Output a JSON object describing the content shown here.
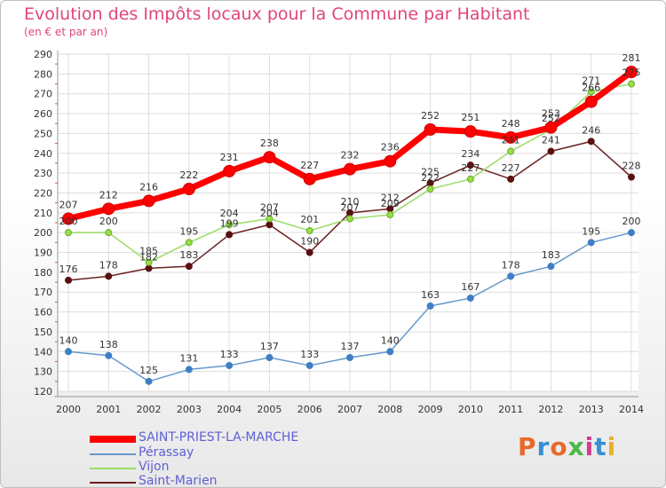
{
  "chart_data": {
    "type": "line",
    "title": "Evolution des Impôts locaux pour la Commune par Habitant",
    "subtitle": "(en € et par an)",
    "xlabel": "",
    "ylabel": "",
    "categories": [
      "2000",
      "2001",
      "2002",
      "2003",
      "2004",
      "2005",
      "2006",
      "2007",
      "2008",
      "2009",
      "2010",
      "2011",
      "2012",
      "2013",
      "2014"
    ],
    "ylim": [
      120,
      290
    ],
    "yticks": [
      120,
      130,
      140,
      150,
      160,
      170,
      180,
      190,
      200,
      210,
      220,
      230,
      240,
      250,
      260,
      270,
      280,
      290
    ],
    "grid": true,
    "legend_position": "bottom-left",
    "series": [
      {
        "name": "SAINT-PRIEST-LA-MARCHE",
        "color": "#ff0000",
        "values": [
          207,
          212,
          216,
          222,
          231,
          238,
          227,
          232,
          236,
          252,
          251,
          248,
          253,
          266,
          281
        ]
      },
      {
        "name": "Pérassay",
        "color": "#6699cc",
        "values": [
          140,
          138,
          125,
          131,
          133,
          137,
          133,
          137,
          140,
          163,
          167,
          178,
          183,
          195,
          200
        ]
      },
      {
        "name": "Vijon",
        "color": "#99dd66",
        "values": [
          200,
          200,
          185,
          195,
          204,
          207,
          201,
          207,
          209,
          222,
          227,
          241,
          252,
          271,
          275
        ]
      },
      {
        "name": "Saint-Marien",
        "color": "#6b2020",
        "values": [
          176,
          178,
          182,
          183,
          199,
          204,
          190,
          210,
          212,
          225,
          234,
          227,
          241,
          246,
          228
        ]
      }
    ]
  },
  "logo": {
    "text": "Proxiti",
    "colors": [
      "#e8692a",
      "#3a8fd4",
      "#e8692a",
      "#48b848",
      "#d43a8f",
      "#3a8fd4",
      "#e8b02a"
    ]
  }
}
